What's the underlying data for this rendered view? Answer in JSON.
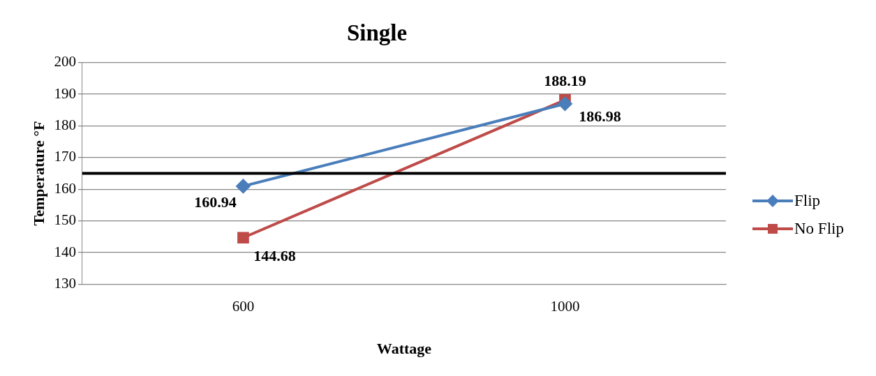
{
  "chart_data": {
    "type": "line",
    "title": "Single",
    "xlabel": "Wattage",
    "ylabel": "Temperature °F",
    "categories": [
      "600",
      "1000"
    ],
    "series": [
      {
        "name": "Flip",
        "color": "#4a7ebb",
        "values": [
          160.94,
          186.98
        ],
        "marker": "diamond"
      },
      {
        "name": "No Flip",
        "color": "#be4b48",
        "values": [
          144.68,
          188.19
        ],
        "marker": "square"
      }
    ],
    "ylim": [
      130,
      200
    ],
    "yticks": [
      130,
      140,
      150,
      160,
      170,
      180,
      190,
      200
    ],
    "grid": "y",
    "legend": "right",
    "data_labels": true,
    "ref_lines": [
      {
        "axis": "y",
        "value": 165,
        "color": "#000000"
      }
    ]
  }
}
